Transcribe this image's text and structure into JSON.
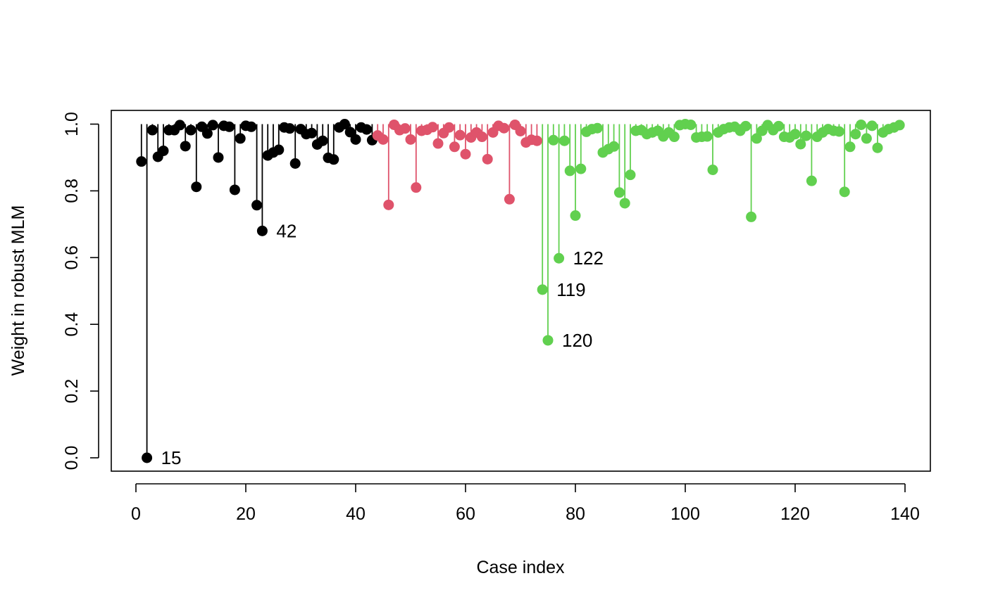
{
  "chart_data": {
    "type": "scatter",
    "style": "lollipop (needles from 1.0 down to each point)",
    "xlabel": "Case index",
    "ylabel": "Weight in robust MLM",
    "xlim": [
      1,
      139
    ],
    "ylim": [
      0,
      1
    ],
    "x_ticks": [
      "0",
      "20",
      "40",
      "60",
      "80",
      "100",
      "120",
      "140"
    ],
    "y_ticks": [
      "0.0",
      "0.2",
      "0.4",
      "0.6",
      "0.8",
      "1.0"
    ],
    "colors": [
      "#000000",
      "#DF536B",
      "#61D04F"
    ],
    "groups": [
      {
        "color": "#000000",
        "x_start": 1,
        "values": [
          0.888,
          0.0,
          0.982,
          0.902,
          0.92,
          0.982,
          0.982,
          0.997,
          0.934,
          0.982,
          0.812,
          0.992,
          0.972,
          0.997,
          0.9,
          0.995,
          0.992,
          0.803,
          0.957,
          0.995,
          0.992,
          0.757,
          0.68,
          0.906,
          0.915,
          0.923,
          0.99,
          0.987,
          0.882,
          0.985,
          0.97,
          0.973,
          0.939,
          0.95,
          0.899,
          0.894,
          0.99,
          1.0,
          0.976,
          0.954,
          0.99,
          0.984,
          0.952
        ]
      },
      {
        "color": "#DF536B",
        "x_start": 44,
        "values": [
          0.966,
          0.954,
          0.758,
          0.998,
          0.982,
          0.987,
          0.954,
          0.81,
          0.98,
          0.983,
          0.991,
          0.942,
          0.973,
          0.99,
          0.932,
          0.967,
          0.91,
          0.96,
          0.975,
          0.962,
          0.895,
          0.975,
          0.995,
          0.988,
          0.775,
          0.998,
          0.979,
          0.945,
          0.953,
          0.95
        ]
      },
      {
        "color": "#61D04F",
        "x_start": 74,
        "values": [
          0.504,
          0.352,
          0.952,
          0.598,
          0.95,
          0.86,
          0.726,
          0.866,
          0.977,
          0.985,
          0.988,
          0.915,
          0.925,
          0.933,
          0.795,
          0.763,
          0.848,
          0.98,
          0.982,
          0.97,
          0.975,
          0.98,
          0.963,
          0.975,
          0.962,
          0.997,
          1.0,
          0.998,
          0.96,
          0.962,
          0.963,
          0.863,
          0.975,
          0.985,
          0.99,
          0.992,
          0.98,
          0.994,
          0.722,
          0.957,
          0.98,
          0.997,
          0.982,
          0.994,
          0.962,
          0.96,
          0.97,
          0.94,
          0.965,
          0.83,
          0.962,
          0.975,
          0.985,
          0.98,
          0.978,
          0.797,
          0.932,
          0.97,
          0.998,
          0.957,
          0.995,
          0.929,
          0.975,
          0.985,
          0.99,
          0.997
        ]
      }
    ],
    "annotations": [
      {
        "text": "15",
        "x": 2,
        "y": 0.0
      },
      {
        "text": "42",
        "x": 23,
        "y": 0.68
      },
      {
        "text": "122",
        "x": 77,
        "y": 0.598
      },
      {
        "text": "119",
        "x": 74,
        "y": 0.504
      },
      {
        "text": "120",
        "x": 75,
        "y": 0.352
      }
    ]
  }
}
